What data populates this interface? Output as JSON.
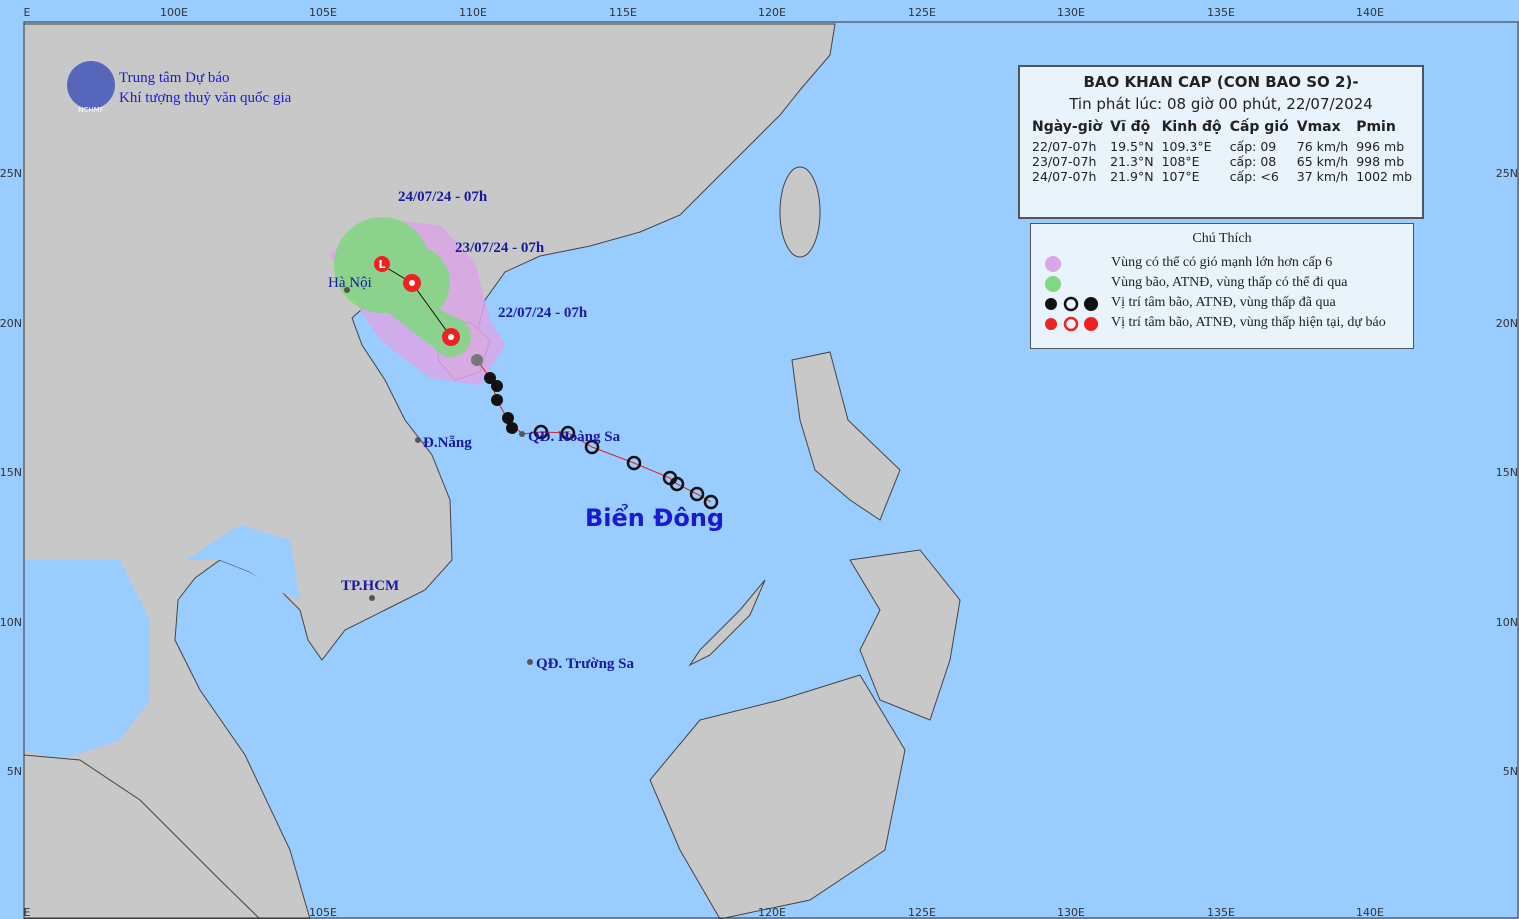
{
  "header": {
    "org_line1": "Trung tâm Dự báo",
    "org_line2": "Khí tượng thuỷ văn quốc gia",
    "logo_text": "NCHMF"
  },
  "axes": {
    "top": [
      "E",
      "100E",
      "105E",
      "110E",
      "115E",
      "120E",
      "125E",
      "130E",
      "135E",
      "140E"
    ],
    "bottom": [
      "E",
      "105E",
      "120E",
      "125E",
      "130E",
      "135E",
      "140E"
    ],
    "left": [
      "25N",
      "20N",
      "15N",
      "10N",
      "5N"
    ],
    "right": [
      "25N",
      "20N",
      "15N",
      "10N",
      "5N"
    ]
  },
  "map_labels": {
    "forecast_24": "24/07/24 - 07h",
    "forecast_23": "23/07/24 - 07h",
    "forecast_22": "22/07/24 - 07h",
    "hanoi": "Hà Nội",
    "danang": "Đ.Nẵng",
    "hoangsa": "QĐ. Hoàng Sa",
    "hcm": "TP.HCM",
    "truongsa": "QĐ. Trường Sa",
    "sea": "Biển Đông"
  },
  "info": {
    "title": "BAO KHAN CAP (CON BAO SO 2)-",
    "subtitle": "Tin phát lúc: 08 giờ 00 phút, 22/07/2024",
    "columns": [
      "Ngày-giờ",
      "Vĩ độ",
      "Kinh độ",
      "Cấp gió",
      "Vmax",
      "Pmin"
    ],
    "rows": [
      [
        "22/07-07h",
        "19.5°N",
        "109.3°E",
        "cấp: 09",
        "76 km/h",
        "996 mb"
      ],
      [
        "23/07-07h",
        "21.3°N",
        "108°E",
        "cấp: 08",
        "65 km/h",
        "998 mb"
      ],
      [
        "24/07-07h",
        "21.9°N",
        "107°E",
        "cấp: <6",
        "37 km/h",
        "1002 mb"
      ]
    ]
  },
  "legend": {
    "title": "Chú Thích",
    "items": [
      "Vùng có thể có gió mạnh lớn hơn cấp 6",
      "Vùng bão, ATNĐ, vùng thấp có thể đi qua",
      "Vị trí tâm bão, ATNĐ, vùng thấp đã qua",
      "Vị trí tâm bão, ATNĐ, vùng thấp hiện tại, dự báo"
    ]
  }
}
